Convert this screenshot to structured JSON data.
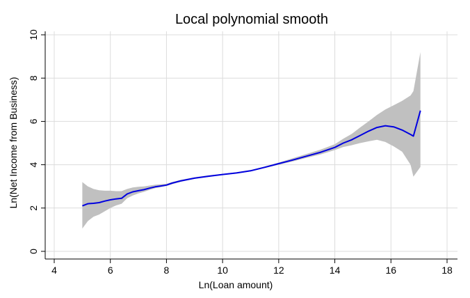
{
  "chart_data": {
    "type": "line",
    "title": "Local polynomial smooth",
    "xlabel": "Ln(Loan amount)",
    "ylabel": "Ln(Net Income from Business)",
    "xlim": [
      4,
      18
    ],
    "ylim": [
      0,
      10
    ],
    "x_ticks": [
      "4",
      "6",
      "8",
      "10",
      "12",
      "14",
      "16",
      "18"
    ],
    "y_ticks": [
      "0",
      "2",
      "4",
      "6",
      "8",
      "10"
    ],
    "grid": true,
    "legend": "none",
    "colors": {
      "line": "#0000e0",
      "band": "#c0c0c0",
      "grid": "#dcdcdc"
    },
    "series": [
      {
        "x": [
          5.0,
          5.2,
          5.4,
          5.6,
          5.8,
          6.0,
          6.2,
          6.4,
          6.6,
          6.8,
          7.0,
          7.2,
          7.4,
          7.6,
          7.8,
          8.0,
          8.2,
          8.5,
          9.0,
          9.5,
          10.0,
          10.5,
          11.0,
          11.5,
          12.0,
          12.5,
          13.0,
          13.5,
          14.0,
          14.3,
          14.6,
          14.9,
          15.2,
          15.5,
          15.8,
          16.1,
          16.4,
          16.7,
          16.8,
          17.05
        ],
        "y": [
          2.1,
          2.2,
          2.22,
          2.25,
          2.32,
          2.38,
          2.42,
          2.45,
          2.65,
          2.75,
          2.8,
          2.85,
          2.92,
          2.98,
          3.02,
          3.06,
          3.15,
          3.25,
          3.38,
          3.47,
          3.55,
          3.62,
          3.72,
          3.88,
          4.05,
          4.22,
          4.4,
          4.58,
          4.8,
          5.0,
          5.15,
          5.35,
          5.55,
          5.72,
          5.8,
          5.75,
          5.6,
          5.4,
          5.32,
          6.5
        ],
        "lower": [
          1.05,
          1.4,
          1.6,
          1.7,
          1.85,
          2.0,
          2.12,
          2.2,
          2.45,
          2.58,
          2.68,
          2.75,
          2.84,
          2.92,
          2.97,
          3.02,
          3.1,
          3.21,
          3.35,
          3.44,
          3.53,
          3.6,
          3.69,
          3.85,
          4.0,
          4.15,
          4.32,
          4.48,
          4.68,
          4.82,
          4.9,
          5.0,
          5.08,
          5.15,
          5.05,
          4.85,
          4.6,
          4.0,
          3.45,
          3.9
        ],
        "upper": [
          3.2,
          3.0,
          2.88,
          2.82,
          2.8,
          2.8,
          2.78,
          2.78,
          2.88,
          2.95,
          2.98,
          3.0,
          3.04,
          3.08,
          3.1,
          3.12,
          3.2,
          3.3,
          3.42,
          3.51,
          3.58,
          3.66,
          3.76,
          3.92,
          4.1,
          4.3,
          4.5,
          4.7,
          4.95,
          5.2,
          5.42,
          5.72,
          6.0,
          6.3,
          6.55,
          6.75,
          6.95,
          7.2,
          7.4,
          9.2
        ]
      }
    ]
  }
}
